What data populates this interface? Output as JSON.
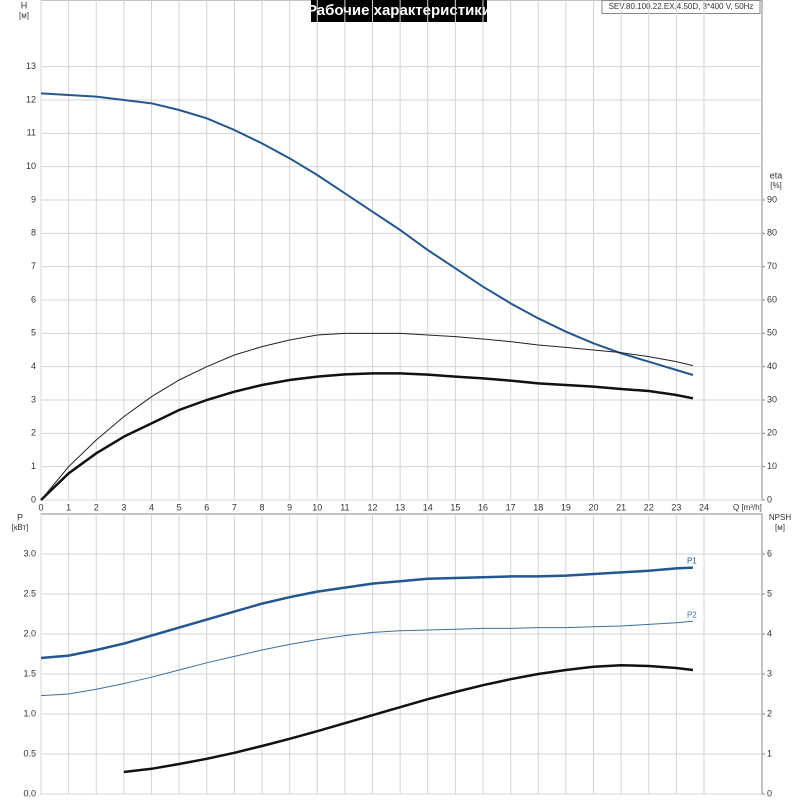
{
  "chart_data": [
    {
      "type": "line",
      "title": "Рабочие характеристики",
      "subtitle": "SEV.80.100.22.EX.4.50D, 3*400 V, 50Hz",
      "ylabel": "H",
      "yunit": "[м]",
      "y2label": "eta",
      "y2unit": "[%]",
      "xlabel": "Q [m³/h]",
      "grid": true,
      "x": [
        0,
        1,
        2,
        3,
        4,
        5,
        6,
        7,
        8,
        9,
        10,
        11,
        12,
        13,
        14,
        15,
        16,
        17,
        18,
        19,
        20,
        21,
        22,
        23,
        23.6
      ],
      "xlim": [
        0,
        26.1
      ],
      "xticks": [
        0,
        1,
        2,
        3,
        4,
        5,
        6,
        7,
        8,
        9,
        10,
        11,
        12,
        13,
        14,
        15,
        16,
        17,
        18,
        19,
        20,
        21,
        22,
        23,
        24
      ],
      "ylim": [
        0,
        15
      ],
      "yticks": [
        0,
        1,
        2,
        3,
        4,
        5,
        6,
        7,
        8,
        9,
        10,
        11,
        12,
        13
      ],
      "y2lim": [
        0,
        150
      ],
      "y2ticks": [
        0,
        10,
        20,
        30,
        40,
        50,
        60,
        70,
        80,
        90
      ],
      "series": [
        {
          "color": "#24568f",
          "line_width": 2,
          "values": [
            12.2,
            12.15,
            12.1,
            12.0,
            11.9,
            11.7,
            11.45,
            11.1,
            10.7,
            10.25,
            9.75,
            9.2,
            8.65,
            8.1,
            7.5,
            6.95,
            6.4,
            5.9,
            5.45,
            5.05,
            4.7,
            4.4,
            4.15,
            3.9,
            3.75
          ]
        },
        {
          "color": "#222222",
          "line_width": 1,
          "axis": "y2",
          "values": [
            0,
            10,
            18,
            25,
            31,
            36,
            40,
            43.5,
            46,
            48,
            49.5,
            50,
            50,
            50,
            49.5,
            49,
            48.3,
            47.5,
            46.5,
            45.8,
            45,
            44.2,
            43,
            41.5,
            40.3
          ]
        },
        {
          "color": "#111111",
          "line_width": 2.5,
          "axis": "y2",
          "values": [
            0,
            8,
            14,
            19,
            23,
            27,
            30,
            32.5,
            34.5,
            36,
            37,
            37.7,
            38,
            38,
            37.6,
            37,
            36.5,
            35.8,
            35,
            34.5,
            34,
            33.3,
            32.7,
            31.5,
            30.5
          ]
        }
      ]
    },
    {
      "type": "line",
      "ylabel": "P",
      "yunit": "[кВт]",
      "y2label": "NPSH",
      "y2unit": "[м]",
      "grid": true,
      "x": [
        0,
        1,
        2,
        3,
        4,
        5,
        6,
        7,
        8,
        9,
        10,
        11,
        12,
        13,
        14,
        15,
        16,
        17,
        18,
        19,
        20,
        21,
        22,
        23,
        23.6
      ],
      "xlim": [
        0,
        26.1
      ],
      "ylim": [
        0,
        3.5
      ],
      "yticks": [
        {
          "value": 0,
          "label": "0.0"
        },
        0.5,
        {
          "value": 1,
          "label": "1.0"
        },
        1.5,
        {
          "value": 2,
          "label": "2.0"
        },
        2.5,
        {
          "value": 3,
          "label": "3.0"
        }
      ],
      "y2lim": [
        0,
        7
      ],
      "y2ticks": [
        0,
        1,
        2,
        3,
        4,
        5,
        6
      ],
      "series": [
        {
          "name": "P1",
          "color": "#24568f",
          "line_width": 2.5,
          "values": [
            1.7,
            1.73,
            1.8,
            1.88,
            1.98,
            2.08,
            2.18,
            2.28,
            2.38,
            2.46,
            2.53,
            2.58,
            2.63,
            2.66,
            2.69,
            2.7,
            2.71,
            2.72,
            2.72,
            2.73,
            2.75,
            2.77,
            2.79,
            2.82,
            2.83
          ]
        },
        {
          "name": "P2",
          "color": "#3b6fa6",
          "line_width": 1,
          "values": [
            1.23,
            1.25,
            1.31,
            1.38,
            1.46,
            1.55,
            1.64,
            1.72,
            1.8,
            1.87,
            1.93,
            1.98,
            2.02,
            2.04,
            2.05,
            2.06,
            2.07,
            2.07,
            2.08,
            2.08,
            2.09,
            2.1,
            2.12,
            2.14,
            2.16
          ]
        },
        {
          "color": "#111111",
          "line_width": 2.5,
          "axis": "y2",
          "values": [
            null,
            null,
            null,
            0.55,
            0.63,
            0.75,
            0.88,
            1.03,
            1.2,
            1.38,
            1.57,
            1.77,
            1.97,
            2.17,
            2.37,
            2.55,
            2.72,
            2.87,
            3.0,
            3.1,
            3.18,
            3.22,
            3.2,
            3.15,
            3.1
          ]
        }
      ]
    }
  ]
}
